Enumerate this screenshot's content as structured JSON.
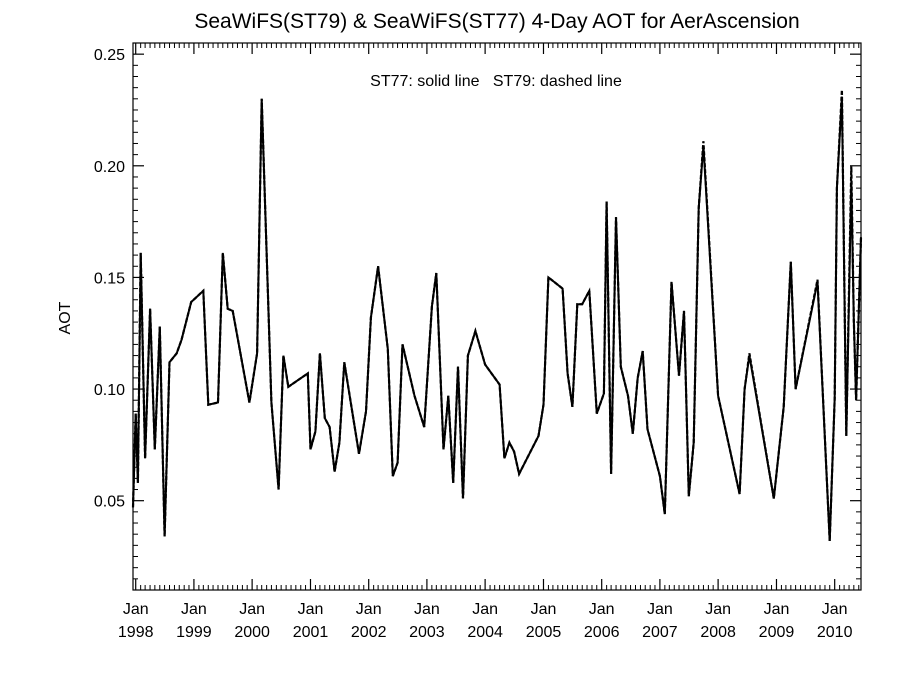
{
  "chart_data": {
    "type": "line",
    "title": "SeaWiFS(ST79) & SeaWiFS(ST77) 4-Day AOT for AerAscension",
    "annotation": "ST77: solid line   ST79: dashed line",
    "ylabel": "AOT",
    "xlabel": "",
    "xlim": [
      "1997-12-15",
      "2010-06-15"
    ],
    "ylim": [
      0.01,
      0.255
    ],
    "y_ticks": [
      "0.05",
      "0.10",
      "0.15",
      "0.20",
      "0.25"
    ],
    "y_tick_values": [
      0.05,
      0.1,
      0.15,
      0.2,
      0.25
    ],
    "x_ticks": [
      {
        "month": "Jan",
        "year": "1998",
        "date": "1998-01-01"
      },
      {
        "month": "Jan",
        "year": "1999",
        "date": "1999-01-01"
      },
      {
        "month": "Jan",
        "year": "2000",
        "date": "2000-01-01"
      },
      {
        "month": "Jan",
        "year": "2001",
        "date": "2001-01-01"
      },
      {
        "month": "Jan",
        "year": "2002",
        "date": "2002-01-01"
      },
      {
        "month": "Jan",
        "year": "2003",
        "date": "2003-01-01"
      },
      {
        "month": "Jan",
        "year": "2004",
        "date": "2004-01-01"
      },
      {
        "month": "Jan",
        "year": "2005",
        "date": "2005-01-01"
      },
      {
        "month": "Jan",
        "year": "2006",
        "date": "2006-01-01"
      },
      {
        "month": "Jan",
        "year": "2007",
        "date": "2007-01-01"
      },
      {
        "month": "Jan",
        "year": "2008",
        "date": "2008-01-01"
      },
      {
        "month": "Jan",
        "year": "2009",
        "date": "2009-01-01"
      },
      {
        "month": "Jan",
        "year": "2010",
        "date": "2010-01-01"
      }
    ],
    "grid": false,
    "legend": "none",
    "series": [
      {
        "name": "ST77",
        "style": "solid",
        "color": "#000000",
        "points": [
          [
            "1997-12-15",
            0.047
          ],
          [
            "1998-01-01",
            0.089
          ],
          [
            "1998-01-15",
            0.058
          ],
          [
            "1998-02-01",
            0.161
          ],
          [
            "1998-03-01",
            0.069
          ],
          [
            "1998-04-01",
            0.136
          ],
          [
            "1998-05-01",
            0.073
          ],
          [
            "1998-06-01",
            0.128
          ],
          [
            "1998-07-01",
            0.034
          ],
          [
            "1998-08-01",
            0.112
          ],
          [
            "1998-09-15",
            0.116
          ],
          [
            "1998-10-15",
            0.122
          ],
          [
            "1998-12-15",
            0.139
          ],
          [
            "1999-03-01",
            0.144
          ],
          [
            "1999-04-01",
            0.093
          ],
          [
            "1999-06-01",
            0.094
          ],
          [
            "1999-07-01",
            0.161
          ],
          [
            "1999-08-01",
            0.136
          ],
          [
            "1999-09-01",
            0.135
          ],
          [
            "1999-12-15",
            0.094
          ],
          [
            "2000-02-01",
            0.116
          ],
          [
            "2000-03-01",
            0.23
          ],
          [
            "2000-05-01",
            0.094
          ],
          [
            "2000-06-15",
            0.055
          ],
          [
            "2000-07-15",
            0.115
          ],
          [
            "2000-08-15",
            0.101
          ],
          [
            "2000-12-15",
            0.107
          ],
          [
            "2001-01-01",
            0.073
          ],
          [
            "2001-02-01",
            0.081
          ],
          [
            "2001-03-01",
            0.116
          ],
          [
            "2001-04-01",
            0.087
          ],
          [
            "2001-05-01",
            0.083
          ],
          [
            "2001-06-01",
            0.063
          ],
          [
            "2001-07-01",
            0.076
          ],
          [
            "2001-08-01",
            0.112
          ],
          [
            "2001-11-01",
            0.071
          ],
          [
            "2001-12-15",
            0.09
          ],
          [
            "2002-01-15",
            0.132
          ],
          [
            "2002-03-01",
            0.155
          ],
          [
            "2002-05-01",
            0.118
          ],
          [
            "2002-06-01",
            0.061
          ],
          [
            "2002-07-01",
            0.067
          ],
          [
            "2002-08-01",
            0.12
          ],
          [
            "2002-10-15",
            0.097
          ],
          [
            "2002-12-15",
            0.083
          ],
          [
            "2003-02-01",
            0.137
          ],
          [
            "2003-03-01",
            0.152
          ],
          [
            "2003-04-15",
            0.073
          ],
          [
            "2003-05-15",
            0.097
          ],
          [
            "2003-06-15",
            0.058
          ],
          [
            "2003-07-15",
            0.11
          ],
          [
            "2003-08-15",
            0.051
          ],
          [
            "2003-09-15",
            0.115
          ],
          [
            "2003-11-01",
            0.126
          ],
          [
            "2004-01-01",
            0.111
          ],
          [
            "2004-04-01",
            0.102
          ],
          [
            "2004-05-01",
            0.069
          ],
          [
            "2004-06-01",
            0.076
          ],
          [
            "2004-07-01",
            0.072
          ],
          [
            "2004-08-01",
            0.062
          ],
          [
            "2004-12-01",
            0.079
          ],
          [
            "2005-01-01",
            0.093
          ],
          [
            "2005-02-01",
            0.15
          ],
          [
            "2005-05-01",
            0.145
          ],
          [
            "2005-06-01",
            0.107
          ],
          [
            "2005-07-01",
            0.092
          ],
          [
            "2005-08-01",
            0.138
          ],
          [
            "2005-09-01",
            0.138
          ],
          [
            "2005-10-15",
            0.144
          ],
          [
            "2005-12-01",
            0.089
          ],
          [
            "2006-01-15",
            0.098
          ],
          [
            "2006-02-01",
            0.184
          ],
          [
            "2006-03-01",
            0.062
          ],
          [
            "2006-04-01",
            0.177
          ],
          [
            "2006-05-01",
            0.11
          ],
          [
            "2006-06-15",
            0.097
          ],
          [
            "2006-07-15",
            0.08
          ],
          [
            "2006-08-15",
            0.105
          ],
          [
            "2006-09-15",
            0.117
          ],
          [
            "2006-10-15",
            0.082
          ],
          [
            "2007-01-01",
            0.061
          ],
          [
            "2007-02-01",
            0.044
          ],
          [
            "2007-03-15",
            0.148
          ],
          [
            "2007-05-01",
            0.106
          ],
          [
            "2007-06-01",
            0.135
          ],
          [
            "2007-07-01",
            0.052
          ],
          [
            "2007-08-01",
            0.076
          ],
          [
            "2007-09-01",
            0.181
          ],
          [
            "2007-10-01",
            0.209
          ],
          [
            "2008-01-01",
            0.097
          ],
          [
            "2008-05-15",
            0.053
          ],
          [
            "2008-06-15",
            0.1
          ],
          [
            "2008-07-15",
            0.115
          ],
          [
            "2008-12-15",
            0.051
          ],
          [
            "2009-02-15",
            0.092
          ],
          [
            "2009-04-01",
            0.157
          ],
          [
            "2009-05-01",
            0.1
          ],
          [
            "2009-09-15",
            0.148
          ],
          [
            "2009-12-01",
            0.032
          ],
          [
            "2010-01-01",
            0.096
          ],
          [
            "2010-01-15",
            0.19
          ],
          [
            "2010-02-15",
            0.231
          ],
          [
            "2010-03-15",
            0.079
          ],
          [
            "2010-04-15",
            0.193
          ],
          [
            "2010-05-01",
            0.131
          ],
          [
            "2010-05-15",
            0.095
          ],
          [
            "2010-06-15",
            0.168
          ]
        ]
      },
      {
        "name": "ST79",
        "style": "dashed",
        "color": "#000000",
        "points": [
          [
            "1997-12-15",
            0.047
          ],
          [
            "1998-01-01",
            0.089
          ],
          [
            "1998-01-15",
            0.058
          ],
          [
            "1998-02-01",
            0.161
          ],
          [
            "1998-03-01",
            0.069
          ],
          [
            "1998-04-01",
            0.136
          ],
          [
            "1998-05-01",
            0.073
          ],
          [
            "1998-06-01",
            0.128
          ],
          [
            "1998-07-01",
            0.034
          ],
          [
            "1998-08-01",
            0.112
          ],
          [
            "1998-09-15",
            0.116
          ],
          [
            "1998-10-15",
            0.122
          ],
          [
            "1998-12-15",
            0.139
          ],
          [
            "1999-03-01",
            0.144
          ],
          [
            "1999-04-01",
            0.093
          ],
          [
            "1999-06-01",
            0.094
          ],
          [
            "1999-07-01",
            0.161
          ],
          [
            "1999-08-01",
            0.136
          ],
          [
            "1999-09-01",
            0.135
          ],
          [
            "1999-12-15",
            0.094
          ],
          [
            "2000-02-01",
            0.116
          ],
          [
            "2000-03-01",
            0.23
          ],
          [
            "2000-05-01",
            0.094
          ],
          [
            "2000-06-15",
            0.055
          ],
          [
            "2000-07-15",
            0.115
          ],
          [
            "2000-08-15",
            0.101
          ],
          [
            "2000-12-15",
            0.107
          ],
          [
            "2001-01-01",
            0.073
          ],
          [
            "2001-02-01",
            0.081
          ],
          [
            "2001-03-01",
            0.116
          ],
          [
            "2001-04-01",
            0.087
          ],
          [
            "2001-05-01",
            0.083
          ],
          [
            "2001-06-01",
            0.063
          ],
          [
            "2001-07-01",
            0.076
          ],
          [
            "2001-08-01",
            0.112
          ],
          [
            "2001-11-01",
            0.071
          ],
          [
            "2001-12-15",
            0.09
          ],
          [
            "2002-01-15",
            0.132
          ],
          [
            "2002-03-01",
            0.155
          ],
          [
            "2002-05-01",
            0.118
          ],
          [
            "2002-06-01",
            0.061
          ],
          [
            "2002-07-01",
            0.067
          ],
          [
            "2002-08-01",
            0.12
          ],
          [
            "2002-10-15",
            0.097
          ],
          [
            "2002-12-15",
            0.083
          ],
          [
            "2003-02-01",
            0.137
          ],
          [
            "2003-03-01",
            0.152
          ],
          [
            "2003-04-15",
            0.073
          ],
          [
            "2003-05-15",
            0.097
          ],
          [
            "2003-06-15",
            0.058
          ],
          [
            "2003-07-15",
            0.11
          ],
          [
            "2003-08-15",
            0.051
          ],
          [
            "2003-09-15",
            0.115
          ],
          [
            "2003-11-01",
            0.126
          ],
          [
            "2004-01-01",
            0.111
          ],
          [
            "2004-04-01",
            0.102
          ],
          [
            "2004-05-01",
            0.069
          ],
          [
            "2004-06-01",
            0.076
          ],
          [
            "2004-07-01",
            0.072
          ],
          [
            "2004-08-01",
            0.062
          ],
          [
            "2004-12-01",
            0.079
          ],
          [
            "2005-01-01",
            0.093
          ],
          [
            "2005-02-01",
            0.15
          ],
          [
            "2005-05-01",
            0.145
          ],
          [
            "2005-06-01",
            0.107
          ],
          [
            "2005-07-01",
            0.092
          ],
          [
            "2005-08-01",
            0.138
          ],
          [
            "2005-09-01",
            0.138
          ],
          [
            "2005-10-15",
            0.144
          ],
          [
            "2005-12-01",
            0.089
          ],
          [
            "2006-01-15",
            0.098
          ],
          [
            "2006-02-01",
            0.184
          ],
          [
            "2006-03-01",
            0.062
          ],
          [
            "2006-04-01",
            0.177
          ],
          [
            "2006-05-01",
            0.11
          ],
          [
            "2006-06-15",
            0.097
          ],
          [
            "2006-07-15",
            0.08
          ],
          [
            "2006-08-15",
            0.105
          ],
          [
            "2006-09-15",
            0.117
          ],
          [
            "2006-10-15",
            0.082
          ],
          [
            "2007-01-01",
            0.061
          ],
          [
            "2007-02-01",
            0.044
          ],
          [
            "2007-03-15",
            0.148
          ],
          [
            "2007-05-01",
            0.106
          ],
          [
            "2007-06-01",
            0.135
          ],
          [
            "2007-07-01",
            0.052
          ],
          [
            "2007-08-01",
            0.076
          ],
          [
            "2007-09-01",
            0.181
          ],
          [
            "2007-10-01",
            0.211
          ],
          [
            "2008-01-01",
            0.097
          ],
          [
            "2008-05-15",
            0.053
          ],
          [
            "2008-06-15",
            0.1
          ],
          [
            "2008-07-15",
            0.116
          ],
          [
            "2008-12-15",
            0.051
          ],
          [
            "2009-02-15",
            0.092
          ],
          [
            "2009-04-01",
            0.157
          ],
          [
            "2009-05-01",
            0.1
          ],
          [
            "2009-09-15",
            0.149
          ],
          [
            "2009-12-01",
            0.032
          ],
          [
            "2010-01-01",
            0.096
          ],
          [
            "2010-01-15",
            0.19
          ],
          [
            "2010-02-15",
            0.234
          ],
          [
            "2010-03-15",
            0.079
          ],
          [
            "2010-04-15",
            0.2
          ],
          [
            "2010-05-01",
            0.131
          ],
          [
            "2010-05-15",
            0.095
          ],
          [
            "2010-06-15",
            0.168
          ]
        ]
      }
    ]
  }
}
